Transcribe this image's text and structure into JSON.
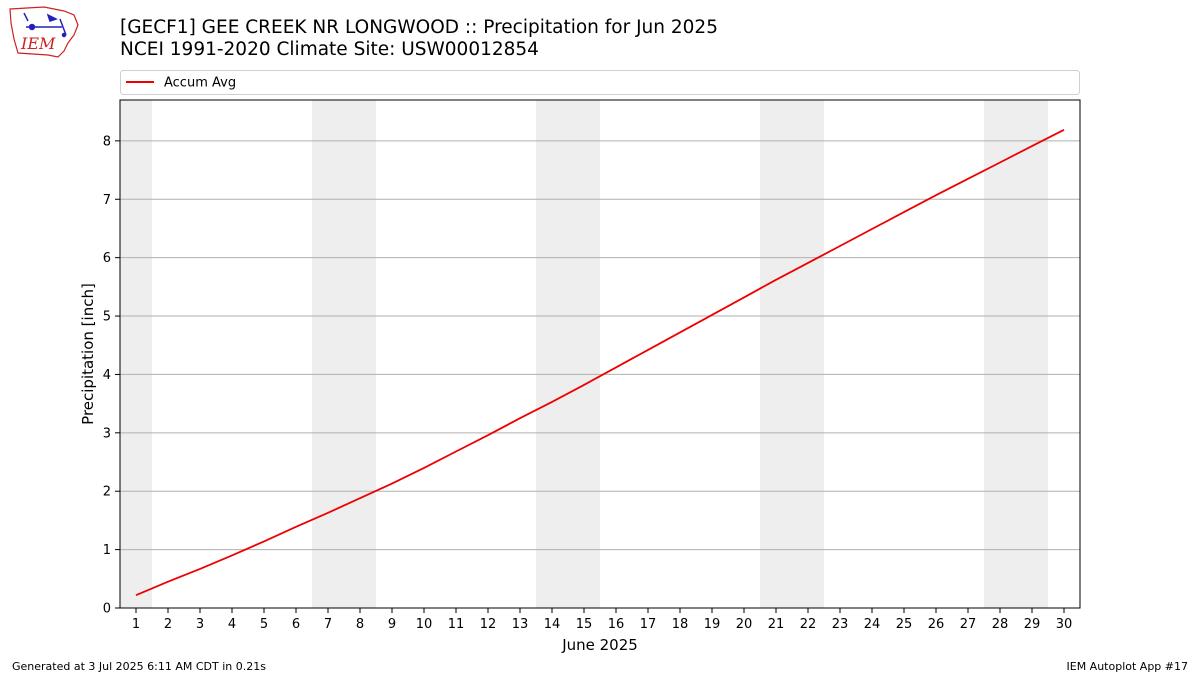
{
  "header": {
    "title_line1": "[GECF1] GEE CREEK NR LONGWOOD :: Precipitation for Jun 2025",
    "title_line2": "NCEI 1991-2020 Climate Site: USW00012854",
    "logo_text": "IEM"
  },
  "footer": {
    "generated": "Generated at 3 Jul 2025 6:11 AM CDT in 0.21s",
    "app": "IEM Autoplot App #17"
  },
  "colors": {
    "series": "#ee0000",
    "weekend_band": "#eeeeee",
    "grid": "#b0b0b0",
    "logo": "#cc2222"
  },
  "chart_data": {
    "type": "line",
    "xlabel": "June 2025",
    "ylabel": "Precipitation [inch]",
    "xlim": [
      0.5,
      30.5
    ],
    "ylim": [
      0,
      8.7
    ],
    "grid": "horizontal",
    "legend_position": "top",
    "x": [
      1,
      2,
      3,
      4,
      5,
      6,
      7,
      8,
      9,
      10,
      11,
      12,
      13,
      14,
      15,
      16,
      17,
      18,
      19,
      20,
      21,
      22,
      23,
      24,
      25,
      26,
      27,
      28,
      29,
      30
    ],
    "x_tick_labels": [
      "1",
      "2",
      "3",
      "4",
      "5",
      "6",
      "7",
      "8",
      "9",
      "10",
      "11",
      "12",
      "13",
      "14",
      "15",
      "16",
      "17",
      "18",
      "19",
      "20",
      "21",
      "22",
      "23",
      "24",
      "25",
      "26",
      "27",
      "28",
      "29",
      "30"
    ],
    "y_tick_labels": [
      "0",
      "1",
      "2",
      "3",
      "4",
      "5",
      "6",
      "7",
      "8"
    ],
    "weekend_days": [
      1,
      7,
      8,
      14,
      15,
      21,
      22,
      28,
      29
    ],
    "series": [
      {
        "name": "Accum Avg",
        "values": [
          0.22,
          0.45,
          0.67,
          0.9,
          1.14,
          1.39,
          1.63,
          1.88,
          2.13,
          2.4,
          2.68,
          2.96,
          3.25,
          3.53,
          3.82,
          4.12,
          4.42,
          4.72,
          5.02,
          5.32,
          5.62,
          5.91,
          6.2,
          6.49,
          6.78,
          7.07,
          7.35,
          7.63,
          7.91,
          8.19
        ]
      }
    ]
  }
}
